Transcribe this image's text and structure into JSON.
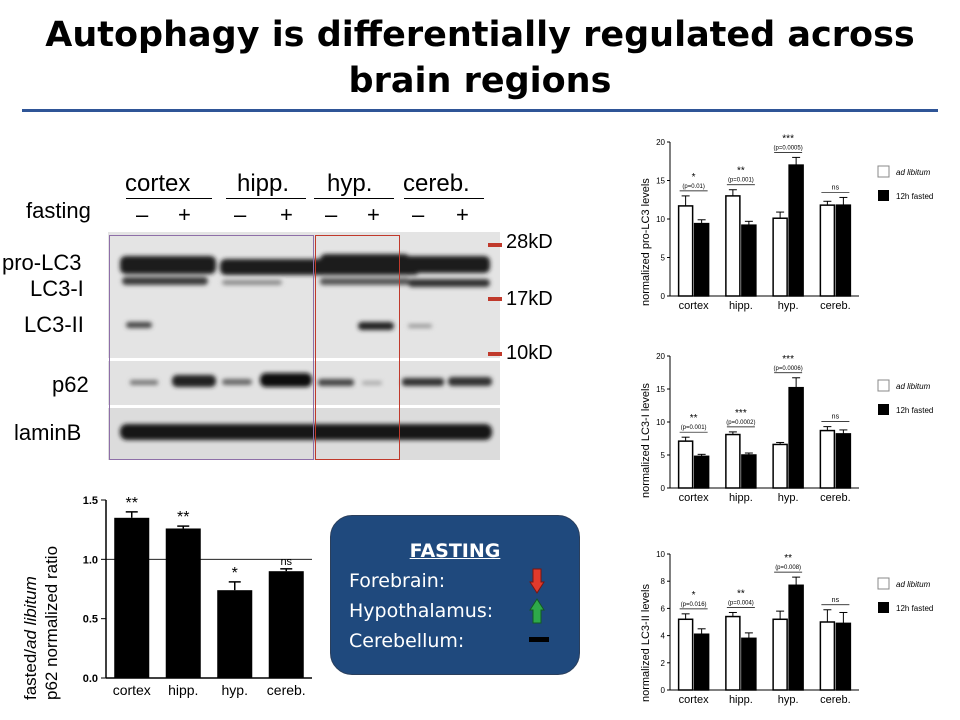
{
  "title": {
    "line1": "Autophagy is differentially regulated across",
    "line2": "brain regions"
  },
  "blot": {
    "regions": [
      "cortex",
      "hipp.",
      "hyp.",
      "cereb."
    ],
    "fasting_label": "fasting",
    "signs": [
      "–",
      "+",
      "–",
      "+",
      "–",
      "+",
      "–",
      "+"
    ],
    "bands": [
      "pro-LC3",
      "LC3-I",
      "LC3-II",
      "p62",
      "laminB"
    ],
    "markers": [
      "28kD",
      "17kD",
      "10kD"
    ],
    "colors": {
      "box_cortex_hipp": "#8e6fa8",
      "box_hyp": "#c0392b",
      "marker": "#c0392b"
    }
  },
  "legend": {
    "ad_libitum": "ad libitum",
    "fasted": "12h fasted"
  },
  "fasting_box": {
    "heading": "FASTING",
    "rows": [
      {
        "label": "Forebrain:",
        "icon": "down-arrow-red"
      },
      {
        "label": "Hypothalamus:",
        "icon": "up-arrow-green"
      },
      {
        "label": "Cerebellum:",
        "icon": "dash-black"
      }
    ],
    "colors": {
      "background": "#1f497d",
      "down": "#e03a2c",
      "up": "#2eaa4a"
    }
  },
  "chart_data": [
    {
      "id": "p62",
      "type": "bar",
      "ylabel_line1_a": "fasted/",
      "ylabel_line1_b": "ad libitum",
      "ylabel_line2": "p62 normalized ratio",
      "categories": [
        "cortex",
        "hipp.",
        "hyp.",
        "cereb."
      ],
      "values": [
        1.35,
        1.26,
        0.74,
        0.9
      ],
      "errors": [
        0.05,
        0.02,
        0.07,
        0.02
      ],
      "significance": [
        "**",
        "**",
        "*",
        "ns"
      ],
      "reference_line": 1.0,
      "ylim": [
        0,
        1.5
      ],
      "yticks": [
        "0.0",
        "0.5",
        "1.0",
        "1.5"
      ]
    },
    {
      "id": "prolc3",
      "type": "bar",
      "ylabel": "normalized pro-LC3 levels",
      "categories": [
        "cortex",
        "hipp.",
        "hyp.",
        "cereb."
      ],
      "series": [
        {
          "name": "ad libitum",
          "values": [
            11.7,
            13,
            10.1,
            11.8
          ],
          "errors": [
            1.3,
            0.8,
            0.8,
            0.5
          ]
        },
        {
          "name": "12h fasted",
          "values": [
            9.4,
            9.2,
            17,
            11.8
          ],
          "errors": [
            0.5,
            0.5,
            1.0,
            1.0
          ]
        }
      ],
      "stars": [
        "*",
        "**",
        "***",
        "ns"
      ],
      "pvalues": [
        "(p=0.01)",
        "(p=0.001)",
        "(p=0.0005)",
        ""
      ],
      "ylim": [
        0,
        20
      ],
      "yticks": [
        "0",
        "5",
        "10",
        "15",
        "20"
      ]
    },
    {
      "id": "lc3i",
      "type": "bar",
      "ylabel": "normalized LC3-I levels",
      "categories": [
        "cortex",
        "hipp.",
        "hyp.",
        "cereb."
      ],
      "series": [
        {
          "name": "ad libitum",
          "values": [
            7.1,
            8.1,
            6.6,
            8.7
          ],
          "errors": [
            0.6,
            0.4,
            0.3,
            0.6
          ]
        },
        {
          "name": "12h fasted",
          "values": [
            4.8,
            5,
            15.2,
            8.2
          ],
          "errors": [
            0.3,
            0.3,
            1.5,
            0.6
          ]
        }
      ],
      "stars": [
        "**",
        "***",
        "***",
        "ns"
      ],
      "pvalues": [
        "(p=0.001)",
        "(p=0.0002)",
        "(p=0.0006)",
        ""
      ],
      "ylim": [
        0,
        20
      ],
      "yticks": [
        "0",
        "5",
        "10",
        "15",
        "20"
      ]
    },
    {
      "id": "lc3ii",
      "type": "bar",
      "ylabel": "normalized LC3-II levels",
      "categories": [
        "cortex",
        "hipp.",
        "hyp.",
        "cereb."
      ],
      "series": [
        {
          "name": "ad libitum",
          "values": [
            5.2,
            5.4,
            5.2,
            5
          ],
          "errors": [
            0.4,
            0.3,
            0.6,
            0.9
          ]
        },
        {
          "name": "12h fasted",
          "values": [
            4.1,
            3.8,
            7.7,
            4.9
          ],
          "errors": [
            0.4,
            0.4,
            0.6,
            0.8
          ]
        }
      ],
      "stars": [
        "*",
        "**",
        "**",
        "ns"
      ],
      "pvalues": [
        "(p=0.016)",
        "(p=0.004)",
        "(p=0.008)",
        ""
      ],
      "ylim": [
        0,
        10
      ],
      "yticks": [
        "0",
        "2",
        "4",
        "6",
        "8",
        "10"
      ]
    }
  ]
}
